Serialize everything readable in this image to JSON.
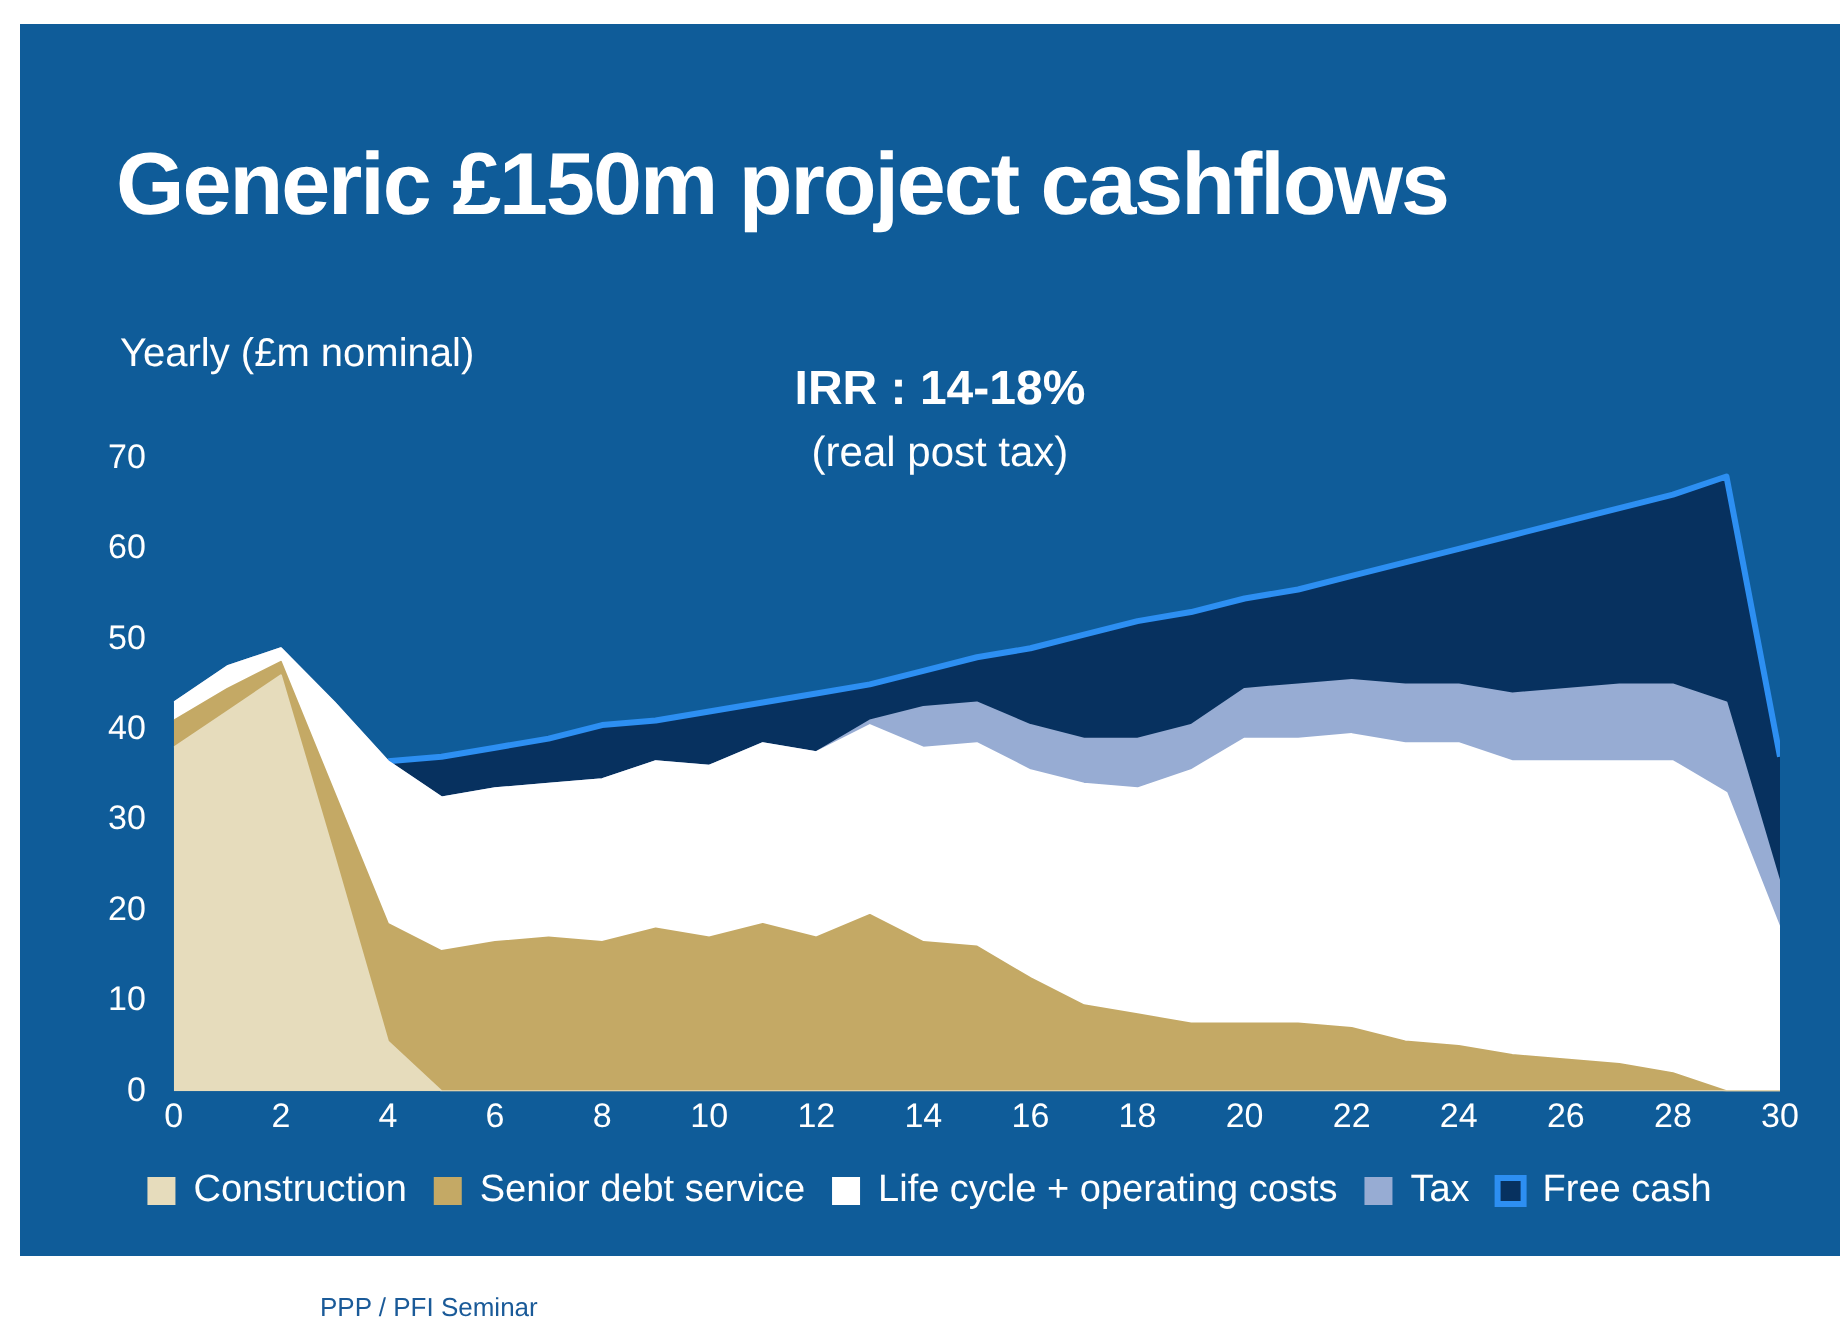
{
  "chart_data": {
    "type": "area",
    "stacked": true,
    "title": "Generic £150m project cashflows",
    "ylabel": "Yearly (£m nominal)",
    "annotations": [
      "IRR : 14-18%",
      "(real post tax)",
      "PPP / PFI Seminar"
    ],
    "x": [
      0,
      1,
      2,
      3,
      4,
      5,
      6,
      7,
      8,
      9,
      10,
      11,
      12,
      13,
      14,
      15,
      16,
      17,
      18,
      19,
      20,
      21,
      22,
      23,
      24,
      25,
      26,
      27,
      28,
      29,
      30
    ],
    "xlim": [
      0,
      30
    ],
    "xticks": [
      0,
      2,
      4,
      6,
      8,
      10,
      12,
      14,
      16,
      18,
      20,
      22,
      24,
      26,
      28,
      30
    ],
    "ylim": [
      0,
      70
    ],
    "yticks": [
      0,
      10,
      20,
      30,
      40,
      50,
      60,
      70
    ],
    "grid": false,
    "legend": "bottom",
    "series": [
      {
        "name": "Construction",
        "color": "#e6dcbc",
        "values": [
          38,
          42,
          46,
          26,
          5.5,
          0,
          0,
          0,
          0,
          0,
          0,
          0,
          0,
          0,
          0,
          0,
          0,
          0,
          0,
          0,
          0,
          0,
          0,
          0,
          0,
          0,
          0,
          0,
          0,
          0,
          0
        ]
      },
      {
        "name": "Senior debt service",
        "color": "#c4a965",
        "values": [
          3,
          2.5,
          1.5,
          7,
          13,
          15.5,
          16.5,
          17,
          16.5,
          18,
          17,
          18.5,
          17,
          19.5,
          16.5,
          16,
          12.5,
          9.5,
          8.5,
          7.5,
          7.5,
          7.5,
          7,
          5.5,
          5,
          4,
          3.5,
          3,
          2,
          0,
          0
        ]
      },
      {
        "name": "Life cycle + operating costs",
        "color": "#ffffff",
        "values": [
          2,
          2.5,
          1.5,
          10,
          18,
          17,
          17,
          17,
          18,
          18.5,
          19,
          20,
          20.5,
          21,
          21.5,
          22.5,
          23,
          24.5,
          25,
          28,
          31.5,
          31.5,
          32.5,
          33,
          33.5,
          32.5,
          33,
          33.5,
          34.5,
          33,
          18
        ]
      },
      {
        "name": "Tax",
        "color": "#97acd3",
        "values": [
          0,
          0,
          0,
          0,
          0,
          0,
          0,
          0,
          0,
          0,
          0,
          0,
          0,
          0.5,
          4.5,
          4.5,
          5,
          5,
          5.5,
          5,
          5.5,
          6,
          6,
          6.5,
          6.5,
          7.5,
          8,
          8.5,
          8.5,
          10,
          5
        ]
      },
      {
        "name": "Free cash",
        "color": "#07315f",
        "values": [
          null,
          null,
          null,
          null,
          0,
          4.5,
          4.5,
          5,
          6,
          4.5,
          6,
          4.5,
          6.5,
          4,
          4,
          5,
          8.5,
          11.5,
          13,
          12.5,
          10,
          10.5,
          11.5,
          13.5,
          15,
          17.5,
          18.5,
          19.5,
          21,
          25,
          14
        ]
      }
    ]
  }
}
